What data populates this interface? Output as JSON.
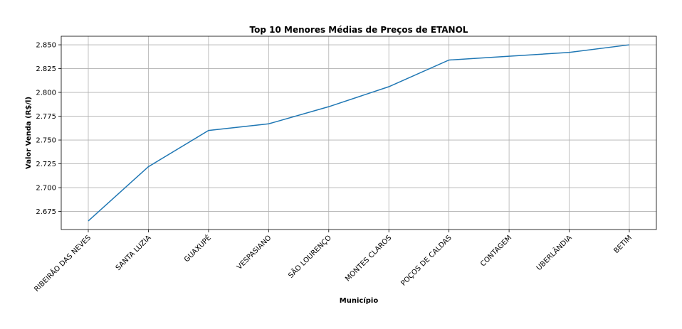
{
  "chart_data": {
    "type": "line",
    "title": "Top 10 Menores Médias de Preços de ETANOL",
    "xlabel": "Município",
    "ylabel": "Valor Venda (R$/l)",
    "categories": [
      "RIBEIRÃO DAS NEVES",
      "SANTA LUZIA",
      "GUAXUPÉ",
      "VESPASIANO",
      "SÃO LOURENÇO",
      "MONTES CLAROS",
      "POÇOS DE CALDAS",
      "CONTAGEM",
      "UBERLÂNDIA",
      "BETIM"
    ],
    "values": [
      2.665,
      2.722,
      2.76,
      2.767,
      2.785,
      2.806,
      2.834,
      2.838,
      2.842,
      2.85
    ],
    "ylim": [
      2.656,
      2.859
    ],
    "yticks": [
      2.675,
      2.7,
      2.725,
      2.75,
      2.775,
      2.8,
      2.825,
      2.85
    ],
    "ytick_labels": [
      "2.675",
      "2.700",
      "2.725",
      "2.750",
      "2.775",
      "2.800",
      "2.825",
      "2.850"
    ],
    "grid": true,
    "line_color": "#1f77b4"
  }
}
